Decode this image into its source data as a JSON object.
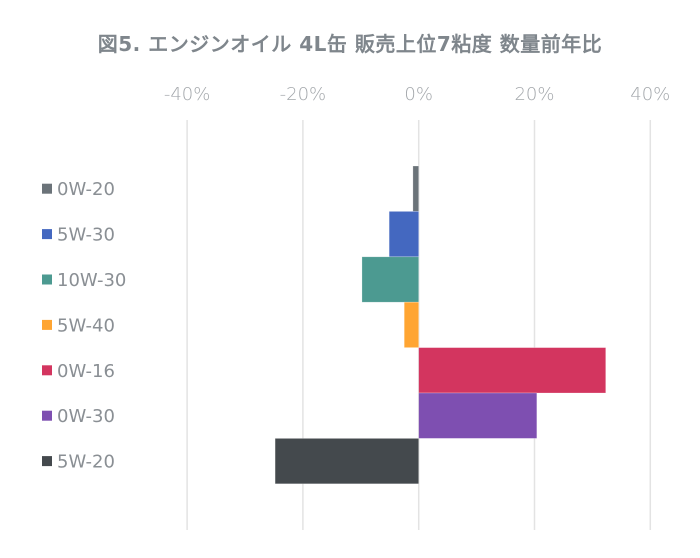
{
  "chart_data": {
    "type": "bar",
    "orientation": "horizontal",
    "title": "図5. エンジンオイル 4L缶 販売上位7粘度 数量前年比",
    "xlabel": "",
    "ylabel": "",
    "xlim": [
      -40,
      40
    ],
    "x_ticks": [
      -40,
      -20,
      0,
      20,
      40
    ],
    "x_tick_labels": [
      "-40%",
      "-20%",
      "0%",
      "20%",
      "40%"
    ],
    "grid": true,
    "legend_position": "left",
    "categories": [
      "0W-20",
      "5W-30",
      "10W-30",
      "5W-40",
      "0W-16",
      "0W-30",
      "5W-20"
    ],
    "values": [
      -1.0,
      -5.1,
      -9.8,
      -2.5,
      32.3,
      20.4,
      -24.8
    ],
    "colors": [
      "#6b7379",
      "#4468c0",
      "#4c9a91",
      "#ffa532",
      "#d3355f",
      "#7e4fb1",
      "#44494d"
    ]
  }
}
